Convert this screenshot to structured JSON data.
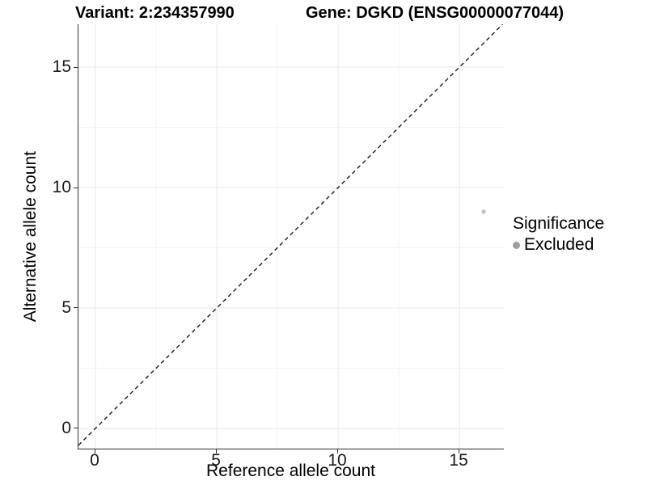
{
  "titles": {
    "variant": "Variant: 2:234357990",
    "gene": "Gene: DGKD (ENSG00000077044)"
  },
  "chart_data": {
    "type": "scatter",
    "title_left": "Variant: 2:234357990",
    "title_right": "Gene: DGKD (ENSG00000077044)",
    "xlabel": "Reference allele count",
    "ylabel": "Alternative allele count",
    "xlim": [
      -0.7,
      16.83
    ],
    "ylim": [
      -0.84,
      16.78
    ],
    "xticks": [
      0,
      5,
      10,
      15
    ],
    "yticks": [
      0,
      5,
      10,
      15
    ],
    "minor_grid_step": 2.5,
    "grid": true,
    "grid_major_color": "#e9e9e9",
    "grid_minor_color": "#f3f3f3",
    "axis_line_color": "#2f2f2f",
    "reference_line": {
      "slope": 1,
      "intercept": 0,
      "style": "dashed",
      "color": "#1a1a1a"
    },
    "series": [
      {
        "name": "Excluded",
        "color": "#c3c3c3",
        "points": [
          {
            "x": 16,
            "y": 9
          }
        ]
      }
    ],
    "legend": {
      "title": "Significance",
      "position": "right",
      "entries": [
        {
          "label": "Excluded",
          "color": "#9d9d9d"
        }
      ]
    }
  },
  "legend": {
    "title": "Significance",
    "entries": [
      {
        "label": "Excluded"
      }
    ]
  },
  "axis": {
    "x_label": "Reference allele count",
    "y_label": "Alternative allele count"
  }
}
